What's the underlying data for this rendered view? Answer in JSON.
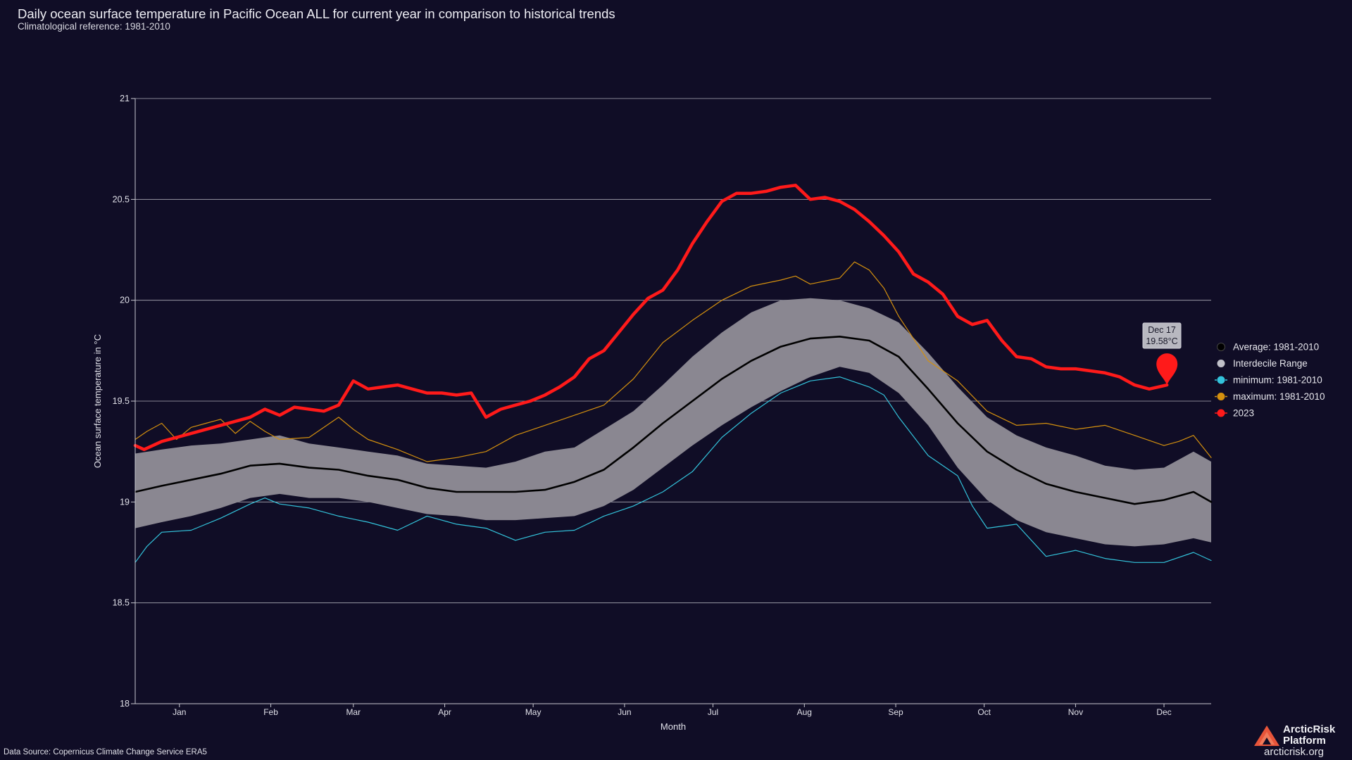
{
  "header": {
    "title": "Daily ocean surface temperature in Pacific Ocean ALL for current year in comparison to historical trends",
    "subtitle": "Climatological reference: 1981-2010"
  },
  "footer": {
    "source": "Data Source: Copernicus Climate Change Service ERA5",
    "brand_name": "ArcticRisk Platform",
    "brand_url": "arcticrisk.org"
  },
  "tooltip": {
    "date": "Dec 17",
    "value": "19.58°C"
  },
  "colors": {
    "background": "#100d26",
    "current_year": "#ff1a1a",
    "average": "#000000",
    "interdecile": "#8a8791",
    "minimum": "#33c3db",
    "maximum": "#d4900e",
    "grid": "#c8c8d0",
    "brand": "#e8553a"
  },
  "chart_data": {
    "type": "line",
    "xlabel": "Month",
    "ylabel": "Ocean surface temperature in °C",
    "ylim": [
      18,
      21
    ],
    "yticks": [
      18,
      18.5,
      19,
      19.5,
      20,
      20.5,
      21
    ],
    "ytick_labels": [
      "18",
      "18.5",
      "19",
      "19.5",
      "20",
      "20.5",
      "21"
    ],
    "xlim": [
      1,
      366
    ],
    "x_unit": "day of year",
    "month_ticks": [
      {
        "label": "Jan",
        "day": 16
      },
      {
        "label": "Feb",
        "day": 47
      },
      {
        "label": "Mar",
        "day": 75
      },
      {
        "label": "Apr",
        "day": 106
      },
      {
        "label": "May",
        "day": 136
      },
      {
        "label": "Jun",
        "day": 167
      },
      {
        "label": "Jul",
        "day": 197
      },
      {
        "label": "Aug",
        "day": 228
      },
      {
        "label": "Sep",
        "day": 259
      },
      {
        "label": "Oct",
        "day": 289
      },
      {
        "label": "Nov",
        "day": 320
      },
      {
        "label": "Dec",
        "day": 350
      }
    ],
    "grid": true,
    "legend_position": "right",
    "series": [
      {
        "name": "Average: 1981-2010",
        "key": "average",
        "x": [
          1,
          10,
          20,
          30,
          40,
          50,
          60,
          70,
          80,
          90,
          100,
          110,
          120,
          130,
          140,
          150,
          160,
          170,
          180,
          190,
          200,
          210,
          220,
          230,
          240,
          250,
          260,
          270,
          280,
          290,
          300,
          310,
          320,
          330,
          340,
          350,
          360,
          366
        ],
        "y": [
          19.05,
          19.08,
          19.11,
          19.14,
          19.18,
          19.19,
          19.17,
          19.16,
          19.13,
          19.11,
          19.07,
          19.05,
          19.05,
          19.05,
          19.06,
          19.1,
          19.16,
          19.27,
          19.39,
          19.5,
          19.61,
          19.7,
          19.77,
          19.81,
          19.82,
          19.8,
          19.72,
          19.56,
          19.39,
          19.25,
          19.16,
          19.09,
          19.05,
          19.02,
          18.99,
          19.01,
          19.05,
          19.0
        ]
      },
      {
        "name": "Interdecile Range (upper)",
        "key": "p90",
        "x": [
          1,
          10,
          20,
          30,
          40,
          50,
          60,
          70,
          80,
          90,
          100,
          110,
          120,
          130,
          140,
          150,
          160,
          170,
          180,
          190,
          200,
          210,
          220,
          230,
          240,
          250,
          260,
          270,
          280,
          290,
          300,
          310,
          320,
          330,
          340,
          350,
          360,
          366
        ],
        "y": [
          19.24,
          19.26,
          19.28,
          19.29,
          19.31,
          19.33,
          19.29,
          19.27,
          19.25,
          19.23,
          19.19,
          19.18,
          19.17,
          19.2,
          19.25,
          19.27,
          19.36,
          19.45,
          19.58,
          19.72,
          19.84,
          19.94,
          20.0,
          20.01,
          20.0,
          19.96,
          19.89,
          19.74,
          19.57,
          19.42,
          19.33,
          19.27,
          19.23,
          19.18,
          19.16,
          19.17,
          19.25,
          19.2
        ]
      },
      {
        "name": "Interdecile Range (lower)",
        "key": "p10",
        "x": [
          1,
          10,
          20,
          30,
          40,
          50,
          60,
          70,
          80,
          90,
          100,
          110,
          120,
          130,
          140,
          150,
          160,
          170,
          180,
          190,
          200,
          210,
          220,
          230,
          240,
          250,
          260,
          270,
          280,
          290,
          300,
          310,
          320,
          330,
          340,
          350,
          360,
          366
        ],
        "y": [
          18.87,
          18.9,
          18.93,
          18.97,
          19.02,
          19.04,
          19.02,
          19.02,
          19.0,
          18.97,
          18.94,
          18.93,
          18.91,
          18.91,
          18.92,
          18.93,
          18.98,
          19.06,
          19.17,
          19.28,
          19.38,
          19.47,
          19.55,
          19.62,
          19.67,
          19.64,
          19.54,
          19.38,
          19.17,
          19.01,
          18.91,
          18.85,
          18.82,
          18.79,
          18.78,
          18.79,
          18.82,
          18.8
        ]
      },
      {
        "name": "minimum: 1981-2010",
        "key": "minimum",
        "x": [
          1,
          5,
          10,
          20,
          30,
          40,
          45,
          50,
          60,
          70,
          80,
          90,
          100,
          110,
          120,
          130,
          140,
          150,
          160,
          170,
          180,
          190,
          200,
          210,
          220,
          230,
          240,
          250,
          255,
          260,
          270,
          280,
          285,
          290,
          300,
          310,
          320,
          330,
          340,
          350,
          360,
          366
        ],
        "y": [
          18.7,
          18.78,
          18.85,
          18.86,
          18.92,
          18.99,
          19.02,
          18.99,
          18.97,
          18.93,
          18.9,
          18.86,
          18.93,
          18.89,
          18.87,
          18.81,
          18.85,
          18.86,
          18.93,
          18.98,
          19.05,
          19.15,
          19.32,
          19.44,
          19.54,
          19.6,
          19.62,
          19.57,
          19.53,
          19.42,
          19.23,
          19.13,
          18.98,
          18.87,
          18.89,
          18.73,
          18.76,
          18.72,
          18.7,
          18.7,
          18.75,
          18.71
        ]
      },
      {
        "name": "maximum: 1981-2010",
        "key": "maximum",
        "x": [
          1,
          5,
          10,
          15,
          20,
          25,
          30,
          35,
          40,
          45,
          50,
          60,
          70,
          75,
          80,
          90,
          100,
          110,
          120,
          130,
          140,
          150,
          160,
          170,
          180,
          190,
          200,
          210,
          220,
          225,
          230,
          240,
          245,
          250,
          255,
          260,
          270,
          280,
          290,
          300,
          310,
          320,
          330,
          340,
          350,
          355,
          360,
          366
        ],
        "y": [
          19.31,
          19.35,
          19.39,
          19.31,
          19.37,
          19.39,
          19.41,
          19.34,
          19.4,
          19.35,
          19.31,
          19.32,
          19.42,
          19.36,
          19.31,
          19.26,
          19.2,
          19.22,
          19.25,
          19.33,
          19.38,
          19.43,
          19.48,
          19.61,
          19.79,
          19.9,
          20.0,
          20.07,
          20.1,
          20.12,
          20.08,
          20.11,
          20.19,
          20.15,
          20.06,
          19.92,
          19.7,
          19.6,
          19.45,
          19.38,
          19.39,
          19.36,
          19.38,
          19.33,
          19.28,
          19.3,
          19.33,
          19.22
        ]
      },
      {
        "name": "2023",
        "key": "current",
        "x": [
          1,
          4,
          10,
          20,
          30,
          40,
          45,
          50,
          55,
          60,
          65,
          70,
          75,
          80,
          85,
          90,
          95,
          100,
          105,
          110,
          115,
          120,
          125,
          130,
          135,
          140,
          145,
          150,
          155,
          160,
          165,
          170,
          175,
          180,
          185,
          190,
          195,
          200,
          205,
          210,
          215,
          220,
          225,
          230,
          235,
          240,
          245,
          250,
          255,
          260,
          265,
          270,
          275,
          280,
          285,
          290,
          295,
          300,
          305,
          310,
          315,
          320,
          325,
          330,
          335,
          340,
          345,
          351
        ],
        "y": [
          19.28,
          19.26,
          19.3,
          19.34,
          19.38,
          19.42,
          19.46,
          19.43,
          19.47,
          19.46,
          19.45,
          19.48,
          19.6,
          19.56,
          19.57,
          19.58,
          19.56,
          19.54,
          19.54,
          19.53,
          19.54,
          19.42,
          19.46,
          19.48,
          19.5,
          19.53,
          19.57,
          19.62,
          19.71,
          19.75,
          19.84,
          19.93,
          20.01,
          20.05,
          20.15,
          20.28,
          20.39,
          20.49,
          20.53,
          20.53,
          20.54,
          20.56,
          20.57,
          20.5,
          20.51,
          20.49,
          20.45,
          20.39,
          20.32,
          20.24,
          20.13,
          20.09,
          20.03,
          19.92,
          19.88,
          19.9,
          19.8,
          19.72,
          19.71,
          19.67,
          19.66,
          19.66,
          19.65,
          19.64,
          19.62,
          19.58,
          19.56,
          19.58
        ]
      }
    ],
    "legend": [
      {
        "label": "Average: 1981-2010",
        "key": "average"
      },
      {
        "label": "Interdecile Range",
        "key": "interdecile"
      },
      {
        "label": "minimum: 1981-2010",
        "key": "minimum"
      },
      {
        "label": "maximum: 1981-2010",
        "key": "maximum"
      },
      {
        "label": "2023",
        "key": "current"
      }
    ],
    "highlight": {
      "x": 351,
      "y": 19.58
    }
  }
}
